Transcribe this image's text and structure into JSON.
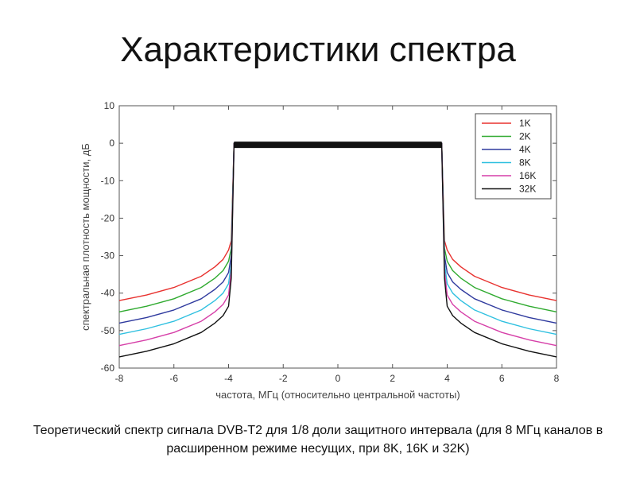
{
  "title": "Характеристики спектра",
  "caption": "Теоретический спектр сигнала DVB-T2 для 1/8 доли защитного интервала (для 8 МГц каналов в расширенном режиме несущих, при 8K, 16K и 32K)",
  "chart_data": {
    "type": "line",
    "title": "",
    "xlabel": "частота, МГц (относительно центральной частоты)",
    "ylabel": "спектральная плотность мощности, дБ",
    "xlim": [
      -8,
      8
    ],
    "ylim": [
      -60,
      10
    ],
    "x_ticks": [
      "-8",
      "-6",
      "-4",
      "-2",
      "0",
      "2",
      "4",
      "6",
      "8"
    ],
    "x_tick_values": [
      -8,
      -6,
      -4,
      -2,
      0,
      2,
      4,
      6,
      8
    ],
    "y_ticks": [
      "10",
      "0",
      "-10",
      "-20",
      "-30",
      "-40",
      "-50",
      "-60"
    ],
    "y_tick_values": [
      10,
      0,
      -10,
      -20,
      -30,
      -40,
      -50,
      -60
    ],
    "grid": false,
    "legend_position": "top-right",
    "band_edge": 3.8,
    "in_band_level": 0,
    "series": [
      {
        "name": "1K",
        "color": "#e8322f",
        "x": [
          -8,
          -7,
          -6,
          -5,
          -4.5,
          -4.2,
          -4.0,
          -3.9,
          -3.8,
          3.8,
          3.9,
          4.0,
          4.2,
          4.5,
          5,
          6,
          7,
          8
        ],
        "y": [
          -42,
          -40.5,
          -38.5,
          -35.5,
          -33,
          -31,
          -28.5,
          -26,
          0,
          0,
          -26,
          -28.5,
          -31,
          -33,
          -35.5,
          -38.5,
          -40.5,
          -42
        ]
      },
      {
        "name": "2K",
        "color": "#2faa2f",
        "x": [
          -8,
          -7,
          -6,
          -5,
          -4.5,
          -4.2,
          -4.0,
          -3.9,
          -3.8,
          3.8,
          3.9,
          4.0,
          4.2,
          4.5,
          5,
          6,
          7,
          8
        ],
        "y": [
          -45,
          -43.5,
          -41.5,
          -38.5,
          -36,
          -34,
          -31.5,
          -28,
          0,
          0,
          -28,
          -31.5,
          -34,
          -36,
          -38.5,
          -41.5,
          -43.5,
          -45
        ]
      },
      {
        "name": "4K",
        "color": "#2f3a9e",
        "x": [
          -8,
          -7,
          -6,
          -5,
          -4.5,
          -4.2,
          -4.0,
          -3.9,
          -3.8,
          3.8,
          3.9,
          4.0,
          4.2,
          4.5,
          5,
          6,
          7,
          8
        ],
        "y": [
          -48,
          -46.5,
          -44.5,
          -41.5,
          -39,
          -37,
          -34.5,
          -30,
          0,
          0,
          -30,
          -34.5,
          -37,
          -39,
          -41.5,
          -44.5,
          -46.5,
          -48
        ]
      },
      {
        "name": "8K",
        "color": "#2fc0e0",
        "x": [
          -8,
          -7,
          -6,
          -5,
          -4.5,
          -4.2,
          -4.0,
          -3.9,
          -3.8,
          3.8,
          3.9,
          4.0,
          4.2,
          4.5,
          5,
          6,
          7,
          8
        ],
        "y": [
          -51,
          -49.5,
          -47.5,
          -44.5,
          -42,
          -40,
          -37.5,
          -32,
          0,
          0,
          -32,
          -37.5,
          -40,
          -42,
          -44.5,
          -47.5,
          -49.5,
          -51
        ]
      },
      {
        "name": "16K",
        "color": "#d63fa8",
        "x": [
          -8,
          -7,
          -6,
          -5,
          -4.5,
          -4.2,
          -4.0,
          -3.9,
          -3.8,
          3.8,
          3.9,
          4.0,
          4.2,
          4.5,
          5,
          6,
          7,
          8
        ],
        "y": [
          -54,
          -52.5,
          -50.5,
          -47.5,
          -45,
          -43,
          -40.5,
          -34,
          0,
          0,
          -34,
          -40.5,
          -43,
          -45,
          -47.5,
          -50.5,
          -52.5,
          -54
        ]
      },
      {
        "name": "32K",
        "color": "#111111",
        "x": [
          -8,
          -7,
          -6,
          -5,
          -4.5,
          -4.2,
          -4.0,
          -3.9,
          -3.8,
          3.8,
          3.9,
          4.0,
          4.2,
          4.5,
          5,
          6,
          7,
          8
        ],
        "y": [
          -57,
          -55.5,
          -53.5,
          -50.5,
          -48,
          -46,
          -43.5,
          -36,
          0,
          0,
          -36,
          -43.5,
          -46,
          -48,
          -50.5,
          -53.5,
          -55.5,
          -57
        ]
      }
    ]
  }
}
